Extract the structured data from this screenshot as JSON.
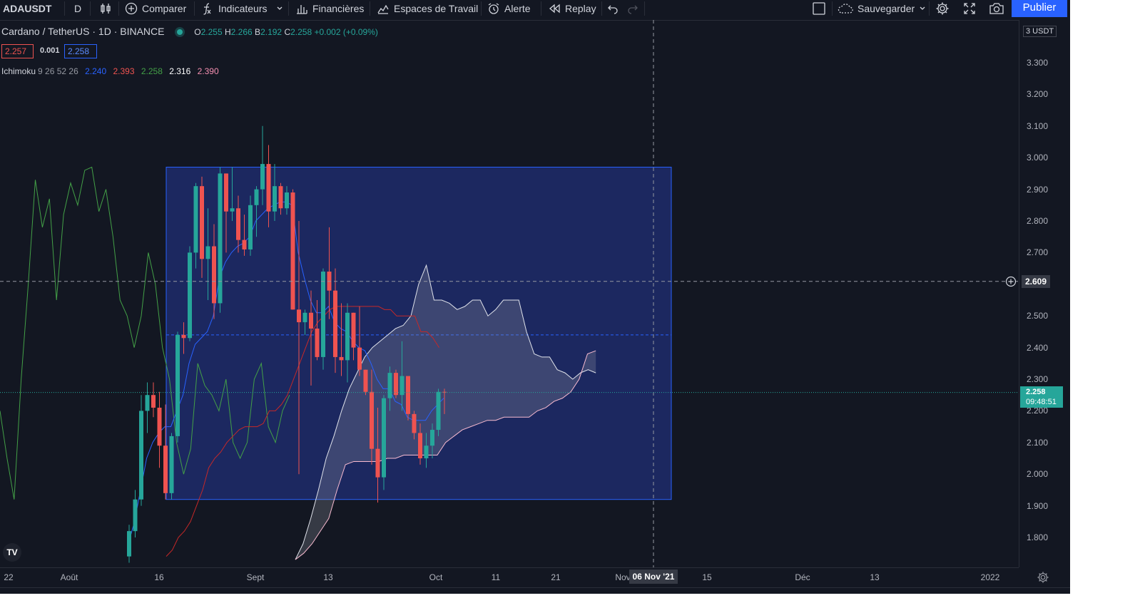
{
  "toolbar": {
    "symbol": "ADAUSDT",
    "interval": "D",
    "compare": "Comparer",
    "indicators": "Indicateurs",
    "financials": "Financières",
    "workspaces": "Espaces de Travail",
    "alert": "Alerte",
    "replay": "Replay",
    "save": "Sauvegarder",
    "publish": "Publier"
  },
  "legend": {
    "title": "Cardano / TetherUS · 1D · BINANCE",
    "o_label": "O",
    "o": "2.255",
    "h_label": "H",
    "h": "2.266",
    "l_label": "B",
    "l": "2.192",
    "c_label": "C",
    "c": "2.258",
    "change": "+0.002 (+0.09%)",
    "bid": "2.257",
    "spread": "0.001",
    "ask": "2.258"
  },
  "indicator": {
    "name": "Ichimoku",
    "params": "9 26 52 26",
    "v1": "2.240",
    "v2": "2.393",
    "v3": "2.258",
    "v4": "2.316",
    "v5": "2.390"
  },
  "price_axis": {
    "unit": "3 USDT",
    "ticks": [
      "3.300",
      "3.200",
      "3.100",
      "3.000",
      "2.900",
      "2.800",
      "2.700",
      "2.500",
      "2.400",
      "2.300",
      "2.200",
      "2.100",
      "2.000",
      "1.900",
      "1.800"
    ],
    "crosshair_price": "2.609",
    "current_price": "2.258",
    "countdown": "09:48:51"
  },
  "time_axis": {
    "ticks": [
      "22",
      "Août",
      "16",
      "Sept",
      "13",
      "Oct",
      "11",
      "21",
      "Nov",
      "15",
      "Déc",
      "13",
      "2022"
    ],
    "crosshair_date": "06 Nov '21"
  },
  "colors": {
    "background": "#131722",
    "up": "#26a69a",
    "down": "#ef5350",
    "tenkan": "#2962ff",
    "kijun": "#b71c1c",
    "chikou": "#43a047",
    "rectangle": "#1e2c6b",
    "accent": "#2962ff"
  },
  "chart_data": {
    "type": "candlestick",
    "symbol": "Cardano / TetherUS",
    "interval": "1D",
    "exchange": "BINANCE",
    "ylim": [
      1.72,
      3.39
    ],
    "candles": [
      {
        "o": 1.74,
        "h": 1.84,
        "l": 1.72,
        "c": 1.82
      },
      {
        "o": 1.82,
        "h": 1.95,
        "l": 1.8,
        "c": 1.92
      },
      {
        "o": 1.92,
        "h": 2.25,
        "l": 1.9,
        "c": 2.2
      },
      {
        "o": 2.2,
        "h": 2.29,
        "l": 2.13,
        "c": 2.25
      },
      {
        "o": 2.25,
        "h": 2.29,
        "l": 2.18,
        "c": 2.21
      },
      {
        "o": 2.21,
        "h": 2.26,
        "l": 2.02,
        "c": 2.09
      },
      {
        "o": 2.09,
        "h": 2.22,
        "l": 1.92,
        "c": 1.94
      },
      {
        "o": 1.94,
        "h": 2.13,
        "l": 1.92,
        "c": 2.12
      },
      {
        "o": 2.12,
        "h": 2.45,
        "l": 2.1,
        "c": 2.44
      },
      {
        "o": 2.44,
        "h": 2.48,
        "l": 2.38,
        "c": 2.43
      },
      {
        "o": 2.43,
        "h": 2.72,
        "l": 2.42,
        "c": 2.7
      },
      {
        "o": 2.7,
        "h": 2.92,
        "l": 2.65,
        "c": 2.91
      },
      {
        "o": 2.91,
        "h": 2.94,
        "l": 2.62,
        "c": 2.68
      },
      {
        "o": 2.68,
        "h": 2.84,
        "l": 2.55,
        "c": 2.72
      },
      {
        "o": 2.72,
        "h": 2.79,
        "l": 2.49,
        "c": 2.54
      },
      {
        "o": 2.54,
        "h": 2.97,
        "l": 2.51,
        "c": 2.95
      },
      {
        "o": 2.95,
        "h": 2.95,
        "l": 2.7,
        "c": 2.83
      },
      {
        "o": 2.83,
        "h": 2.97,
        "l": 2.8,
        "c": 2.84
      },
      {
        "o": 2.84,
        "h": 2.88,
        "l": 2.7,
        "c": 2.74
      },
      {
        "o": 2.74,
        "h": 2.82,
        "l": 2.69,
        "c": 2.71
      },
      {
        "o": 2.71,
        "h": 2.88,
        "l": 2.69,
        "c": 2.85
      },
      {
        "o": 2.85,
        "h": 2.91,
        "l": 2.75,
        "c": 2.9
      },
      {
        "o": 2.9,
        "h": 3.1,
        "l": 2.85,
        "c": 2.98
      },
      {
        "o": 2.98,
        "h": 3.04,
        "l": 2.78,
        "c": 2.83
      },
      {
        "o": 2.83,
        "h": 2.98,
        "l": 2.8,
        "c": 2.91
      },
      {
        "o": 2.91,
        "h": 2.92,
        "l": 2.82,
        "c": 2.84
      },
      {
        "o": 2.84,
        "h": 2.91,
        "l": 2.82,
        "c": 2.89
      },
      {
        "o": 2.89,
        "h": 2.9,
        "l": 2.52,
        "c": 2.52
      },
      {
        "o": 2.52,
        "h": 2.8,
        "l": 2.0,
        "c": 2.48
      },
      {
        "o": 2.48,
        "h": 2.52,
        "l": 2.44,
        "c": 2.51
      },
      {
        "o": 2.51,
        "h": 2.58,
        "l": 2.28,
        "c": 2.46
      },
      {
        "o": 2.46,
        "h": 2.55,
        "l": 2.36,
        "c": 2.37
      },
      {
        "o": 2.37,
        "h": 2.65,
        "l": 2.33,
        "c": 2.64
      },
      {
        "o": 2.64,
        "h": 2.78,
        "l": 2.49,
        "c": 2.58
      },
      {
        "o": 2.58,
        "h": 2.65,
        "l": 2.32,
        "c": 2.37
      },
      {
        "o": 2.37,
        "h": 2.54,
        "l": 2.31,
        "c": 2.36
      },
      {
        "o": 2.36,
        "h": 2.54,
        "l": 2.29,
        "c": 2.51
      },
      {
        "o": 2.51,
        "h": 2.51,
        "l": 2.36,
        "c": 2.4
      },
      {
        "o": 2.4,
        "h": 2.53,
        "l": 2.31,
        "c": 2.33
      },
      {
        "o": 2.33,
        "h": 2.33,
        "l": 2.25,
        "c": 2.26
      },
      {
        "o": 2.26,
        "h": 2.33,
        "l": 2.03,
        "c": 2.08
      },
      {
        "o": 2.08,
        "h": 2.21,
        "l": 1.91,
        "c": 1.99
      },
      {
        "o": 1.99,
        "h": 2.25,
        "l": 1.95,
        "c": 2.24
      },
      {
        "o": 2.24,
        "h": 2.34,
        "l": 2.2,
        "c": 2.32
      },
      {
        "o": 2.32,
        "h": 2.33,
        "l": 2.24,
        "c": 2.25
      },
      {
        "o": 2.25,
        "h": 2.42,
        "l": 2.2,
        "c": 2.31
      },
      {
        "o": 2.31,
        "h": 2.3,
        "l": 2.17,
        "c": 2.19
      },
      {
        "o": 2.19,
        "h": 2.2,
        "l": 2.11,
        "c": 2.13
      },
      {
        "o": 2.13,
        "h": 2.16,
        "l": 2.03,
        "c": 2.05
      },
      {
        "o": 2.05,
        "h": 2.13,
        "l": 2.02,
        "c": 2.09
      },
      {
        "o": 2.09,
        "h": 2.16,
        "l": 2.05,
        "c": 2.14
      },
      {
        "o": 2.14,
        "h": 2.27,
        "l": 2.12,
        "c": 2.26
      },
      {
        "o": 2.26,
        "h": 2.27,
        "l": 2.19,
        "c": 2.258
      }
    ],
    "tenkan": [
      1.78,
      1.85,
      1.95,
      2.05,
      2.1,
      2.13,
      2.15,
      2.15,
      2.2,
      2.25,
      2.35,
      2.41,
      2.43,
      2.45,
      2.5,
      2.62,
      2.67,
      2.7,
      2.72,
      2.73,
      2.75,
      2.8,
      2.82,
      2.84,
      2.85,
      2.86,
      2.86,
      2.85,
      2.7,
      2.62,
      2.55,
      2.51,
      2.51,
      2.53,
      2.48,
      2.46,
      2.45,
      2.42,
      2.4,
      2.39,
      2.35,
      2.3,
      2.27,
      2.27,
      2.23,
      2.22,
      2.18,
      2.17,
      2.17,
      2.17,
      2.2,
      2.22,
      2.24
    ],
    "kijun": [
      1.74,
      1.76,
      1.8,
      1.82,
      1.85,
      1.9,
      1.95,
      2.02,
      2.05,
      2.07,
      2.1,
      2.12,
      2.14,
      2.15,
      2.15,
      2.15,
      2.16,
      2.2,
      2.2,
      2.22,
      2.25,
      2.3,
      2.35,
      2.4,
      2.45,
      2.48,
      2.5,
      2.52,
      2.53,
      2.53,
      2.53,
      2.53,
      2.53,
      2.53,
      2.53,
      2.53,
      2.52,
      2.52,
      2.5,
      2.5,
      2.5,
      2.5,
      2.45,
      2.45,
      2.43,
      2.4
    ],
    "chikou": [
      2.2,
      2.05,
      1.92,
      2.3,
      2.6,
      2.93,
      2.78,
      2.87,
      2.55,
      2.82,
      2.92,
      2.85,
      2.96,
      2.97,
      2.83,
      2.9,
      2.75,
      2.55,
      2.5,
      2.4,
      2.5,
      2.7,
      2.6,
      2.4,
      2.3,
      2.1,
      2.0,
      2.08,
      2.35,
      2.28,
      2.25,
      2.2,
      2.3,
      2.1,
      2.05,
      2.1,
      2.3,
      2.35,
      2.15,
      2.1,
      2.2,
      2.25
    ],
    "span_a": [
      1.73,
      1.78,
      1.86,
      1.95,
      2.05,
      2.12,
      2.2,
      2.27,
      2.32,
      2.37,
      2.4,
      2.42,
      2.44,
      2.46,
      2.47,
      2.5,
      2.6,
      2.66,
      2.55,
      2.55,
      2.54,
      2.52,
      2.53,
      2.55,
      2.55,
      2.5,
      2.52,
      2.55,
      2.55,
      2.55,
      2.45,
      2.38,
      2.37,
      2.37,
      2.33,
      2.32,
      2.3,
      2.32,
      2.33,
      2.32
    ],
    "span_b": [
      1.73,
      1.75,
      1.78,
      1.82,
      1.86,
      1.95,
      2.03,
      2.04,
      2.04,
      2.04,
      2.04,
      2.05,
      2.05,
      2.06,
      2.06,
      2.06,
      2.06,
      2.06,
      2.1,
      2.12,
      2.14,
      2.15,
      2.16,
      2.17,
      2.17,
      2.18,
      2.18,
      2.18,
      2.18,
      2.2,
      2.21,
      2.23,
      2.24,
      2.26,
      2.3,
      2.38,
      2.39
    ],
    "rectangle": {
      "price_top": 2.97,
      "price_bottom": 1.92
    },
    "level_dashed": 2.44
  }
}
